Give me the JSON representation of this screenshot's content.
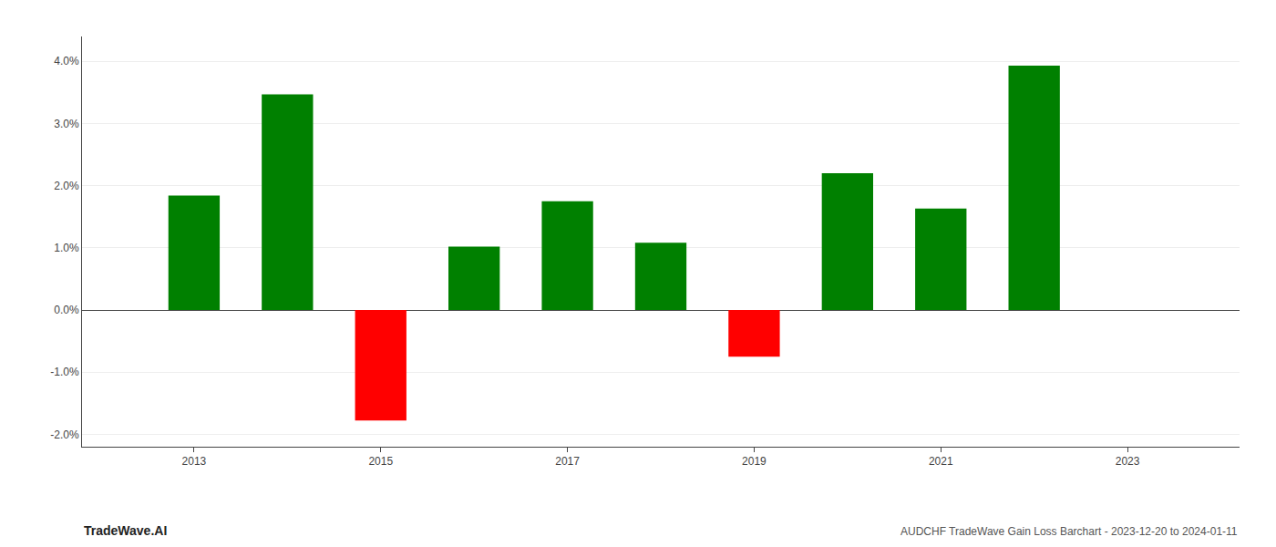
{
  "chart_data": {
    "type": "bar",
    "x": [
      2013,
      2014,
      2015,
      2016,
      2017,
      2018,
      2019,
      2020,
      2021,
      2022
    ],
    "values": [
      0.0184,
      0.0347,
      -0.0178,
      0.0102,
      0.0175,
      0.0108,
      -0.0075,
      0.022,
      0.0163,
      0.0393
    ],
    "colors": [
      "#008000",
      "#008000",
      "#ff0000",
      "#008000",
      "#008000",
      "#008000",
      "#ff0000",
      "#008000",
      "#008000",
      "#008000"
    ],
    "ylim": [
      -0.022,
      0.044
    ],
    "yticks": [
      {
        "value": -0.02,
        "label": "-2.0%"
      },
      {
        "value": -0.01,
        "label": "-1.0%"
      },
      {
        "value": 0.0,
        "label": "0.0%"
      },
      {
        "value": 0.01,
        "label": "1.0%"
      },
      {
        "value": 0.02,
        "label": "2.0%"
      },
      {
        "value": 0.03,
        "label": "3.0%"
      },
      {
        "value": 0.04,
        "label": "4.0%"
      }
    ],
    "xlim": [
      2011.8,
      2024.2
    ],
    "xticks": [
      2013,
      2015,
      2017,
      2019,
      2021,
      2023
    ],
    "grid": true,
    "annotations": [
      "TradeWave.AI",
      "AUDCHF TradeWave Gain Loss Barchart - 2023-12-20 to 2024-01-11"
    ]
  }
}
